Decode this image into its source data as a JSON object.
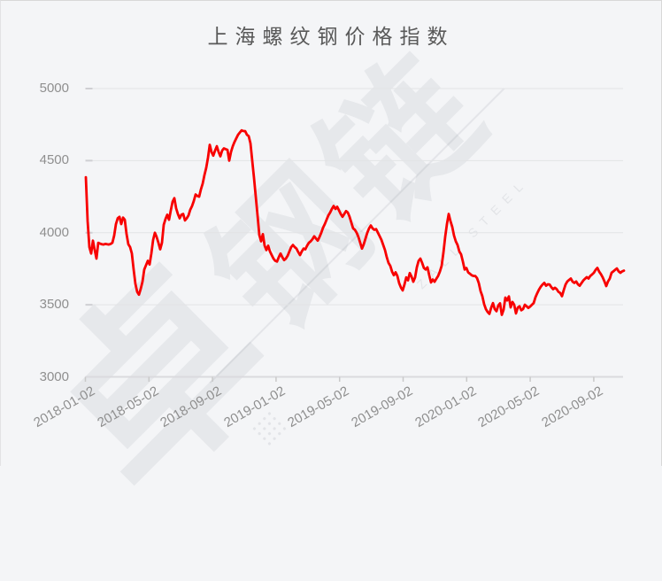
{
  "window": {
    "background": "#f4f5f7"
  },
  "watermark": {
    "glyph": "卓",
    "text_cn": "钢链",
    "text_en": "ZALL STEEL"
  },
  "chart_data": {
    "type": "line",
    "title": "上海螺纹钢价格指数",
    "xlabel": "",
    "ylabel": "",
    "ylim": [
      3000,
      5000
    ],
    "y_ticks": [
      3000,
      3500,
      4000,
      4500,
      5000
    ],
    "x_tick_labels": [
      "2018-01-02",
      "2018-05-02",
      "2018-09-02",
      "2019-01-02",
      "2019-05-02",
      "2019-09-02",
      "2020-01-02",
      "2020-05-02",
      "2020-09-02"
    ],
    "grid": true,
    "legend": "none",
    "colors": {
      "line": "#f80000",
      "grid": "#e2e3e5",
      "axis": "#dadade",
      "tick": "#c9c9c9",
      "label": "#8f8f8f"
    },
    "series": [
      {
        "name": "上海螺纹钢价格指数",
        "color": "#f80000",
        "values": [
          4385,
          4080,
          3900,
          3855,
          3945,
          3880,
          3820,
          3930,
          3925,
          3920,
          3918,
          3922,
          3920,
          3918,
          3922,
          3930,
          3980,
          4060,
          4100,
          4110,
          4060,
          4105,
          4090,
          3990,
          3920,
          3900,
          3855,
          3745,
          3645,
          3590,
          3570,
          3610,
          3660,
          3745,
          3775,
          3805,
          3780,
          3855,
          3950,
          4000,
          3970,
          3930,
          3885,
          3930,
          4055,
          4095,
          4125,
          4090,
          4155,
          4215,
          4240,
          4170,
          4130,
          4100,
          4125,
          4130,
          4085,
          4100,
          4120,
          4160,
          4185,
          4220,
          4265,
          4255,
          4250,
          4300,
          4340,
          4400,
          4450,
          4520,
          4610,
          4560,
          4535,
          4570,
          4600,
          4560,
          4530,
          4570,
          4585,
          4580,
          4575,
          4500,
          4560,
          4600,
          4630,
          4655,
          4680,
          4695,
          4710,
          4705,
          4705,
          4680,
          4670,
          4620,
          4500,
          4380,
          4250,
          4120,
          3985,
          3940,
          3990,
          3910,
          3880,
          3910,
          3870,
          3845,
          3820,
          3805,
          3800,
          3830,
          3855,
          3830,
          3810,
          3820,
          3840,
          3870,
          3900,
          3915,
          3900,
          3890,
          3865,
          3845,
          3870,
          3890,
          3885,
          3910,
          3930,
          3940,
          3955,
          3975,
          3960,
          3945,
          3970,
          4000,
          4035,
          4060,
          4090,
          4120,
          4140,
          4165,
          4185,
          4165,
          4180,
          4155,
          4130,
          4110,
          4130,
          4150,
          4140,
          4110,
          4070,
          4030,
          4020,
          4000,
          3970,
          3930,
          3890,
          3920,
          3960,
          4000,
          4030,
          4050,
          4030,
          4020,
          4025,
          4000,
          3975,
          3950,
          3915,
          3880,
          3830,
          3790,
          3770,
          3730,
          3705,
          3725,
          3700,
          3650,
          3620,
          3600,
          3640,
          3690,
          3670,
          3720,
          3695,
          3660,
          3690,
          3760,
          3805,
          3820,
          3790,
          3755,
          3745,
          3760,
          3705,
          3655,
          3675,
          3660,
          3680,
          3700,
          3730,
          3770,
          3860,
          3970,
          4060,
          4130,
          4080,
          4040,
          3980,
          3940,
          3915,
          3870,
          3850,
          3800,
          3745,
          3755,
          3725,
          3715,
          3705,
          3700,
          3700,
          3685,
          3650,
          3595,
          3560,
          3505,
          3470,
          3450,
          3437,
          3480,
          3512,
          3470,
          3455,
          3495,
          3510,
          3430,
          3465,
          3550,
          3530,
          3558,
          3482,
          3520,
          3500,
          3440,
          3480,
          3490,
          3462,
          3470,
          3500,
          3490,
          3478,
          3488,
          3500,
          3512,
          3552,
          3580,
          3605,
          3625,
          3640,
          3652,
          3632,
          3642,
          3640,
          3622,
          3608,
          3618,
          3608,
          3590,
          3582,
          3560,
          3602,
          3640,
          3662,
          3672,
          3682,
          3660,
          3652,
          3662,
          3642,
          3632,
          3650,
          3668,
          3680,
          3692,
          3682,
          3700,
          3710,
          3722,
          3742,
          3756,
          3730,
          3712,
          3690,
          3662,
          3630,
          3662,
          3682,
          3722,
          3732,
          3742,
          3752,
          3732,
          3722,
          3732,
          3737
        ]
      }
    ]
  }
}
